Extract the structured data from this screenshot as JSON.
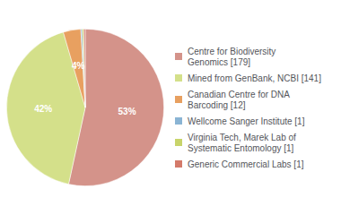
{
  "chart_data": {
    "type": "pie",
    "categories": [
      "Centre for Biodiversity\nGenomics [179]",
      "Mined from GenBank, NCBI [141]",
      "Canadian Centre for DNA\nBarcoding [12]",
      "Wellcome Sanger Institute [1]",
      "Virginia Tech, Marek Lab of\nSystematic Entomology [1]",
      "Generic Commercial Labs [1]"
    ],
    "values": [
      53.4,
      42.1,
      3.6,
      0.3,
      0.3,
      0.3
    ],
    "value_labels": [
      "53%",
      "42%",
      "4%",
      null,
      null,
      null
    ],
    "colors": [
      "#d4938a",
      "#d4e08a",
      "#e8a060",
      "#8ab4d4",
      "#c8d46a",
      "#d47a6a"
    ],
    "legend": "right"
  }
}
